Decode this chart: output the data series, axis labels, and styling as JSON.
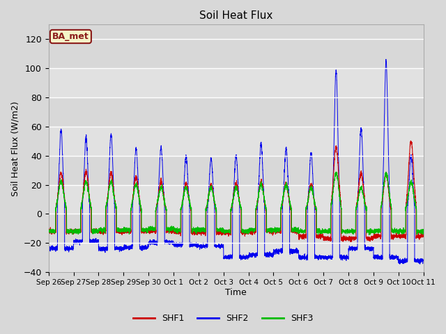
{
  "title": "Soil Heat Flux",
  "ylabel": "Soil Heat Flux (W/m2)",
  "xlabel": "Time",
  "ylim": [
    -40,
    130
  ],
  "yticks": [
    -40,
    -20,
    0,
    20,
    40,
    60,
    80,
    100,
    120
  ],
  "background_color": "#d8d8d8",
  "plot_bg_color": "#d8d8d8",
  "shf1_color": "#cc0000",
  "shf2_color": "#0000ee",
  "shf3_color": "#00bb00",
  "legend_label": "BA_met",
  "legend_bg": "#f5f5c8",
  "legend_border": "#8b1a1a",
  "tick_labels": [
    "Sep 26",
    "Sep 27",
    "Sep 28",
    "Sep 29",
    "Sep 30",
    "Oct 1",
    "Oct 2",
    "Oct 3",
    "Oct 4",
    "Oct 5",
    "Oct 6",
    "Oct 7",
    "Oct 8",
    "Oct 9",
    "Oct 10",
    "Oct 11"
  ],
  "n_days": 15,
  "shf1_peaks": [
    28,
    29,
    28,
    25,
    22,
    21,
    20,
    21,
    22,
    21,
    20,
    46,
    28,
    27,
    50
  ],
  "shf2_peaks": [
    58,
    52,
    55,
    45,
    46,
    40,
    38,
    40,
    48,
    45,
    42,
    99,
    59,
    105,
    40
  ],
  "shf3_peaks": [
    22,
    22,
    22,
    20,
    18,
    18,
    18,
    18,
    20,
    20,
    18,
    28,
    18,
    28,
    22
  ],
  "shf1_troughs": [
    -14,
    -14,
    -14,
    -14,
    -14,
    -15,
    -15,
    -15,
    -14,
    -14,
    -18,
    -20,
    -20,
    -18,
    -18
  ],
  "shf2_troughs": [
    -28,
    -22,
    -28,
    -27,
    -23,
    -25,
    -26,
    -35,
    -33,
    -30,
    -35,
    -35,
    -28,
    -35,
    -38
  ],
  "shf3_troughs": [
    -14,
    -14,
    -13,
    -13,
    -12,
    -13,
    -13,
    -14,
    -13,
    -13,
    -14,
    -14,
    -14,
    -14,
    -14
  ]
}
